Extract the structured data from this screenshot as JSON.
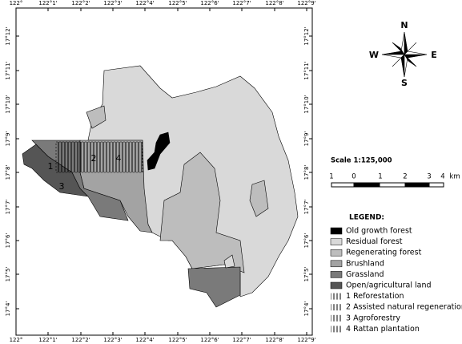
{
  "map": {
    "lon_labels": [
      "122°",
      "122°1'",
      "122°2'",
      "122°3'",
      "122°4'",
      "122°5'",
      "122°6'",
      "122°7'",
      "122°8'",
      "122°9'"
    ],
    "lat_labels": [
      "17°12'",
      "17°11'",
      "17°10'",
      "17°9'",
      "17°8'",
      "17°7'",
      "17°6'",
      "17°5'",
      "17°4'"
    ],
    "area_labels": [
      "1",
      "2",
      "3",
      "4"
    ],
    "compass": {
      "north": "N",
      "south": "S",
      "east": "E",
      "west": "W"
    },
    "scale": {
      "title": "Scale 1:125,000",
      "labels": [
        "1",
        "0",
        "1",
        "2",
        "3",
        "4",
        "km"
      ]
    },
    "legend": {
      "title": "LEGEND:",
      "items": [
        {
          "label": "Old growth forest",
          "color": "#000000"
        },
        {
          "label": "Residual forest",
          "color": "#d9d9d9"
        },
        {
          "label": "Regenerating forest",
          "color": "#bdbdbd"
        },
        {
          "label": "Brushland",
          "color": "#a3a3a3"
        },
        {
          "label": "Grassland",
          "color": "#7a7a7a"
        },
        {
          "label": "Open/agricultural land",
          "color": "#555555"
        },
        {
          "label": "1 Reforestation",
          "style": "hatched"
        },
        {
          "label": "2 Assisted natural regeneration",
          "style": "hatched"
        },
        {
          "label": "3 Agroforestry",
          "style": "hatched"
        },
        {
          "label": "4 Rattan plantation",
          "style": "hatched"
        }
      ]
    }
  }
}
